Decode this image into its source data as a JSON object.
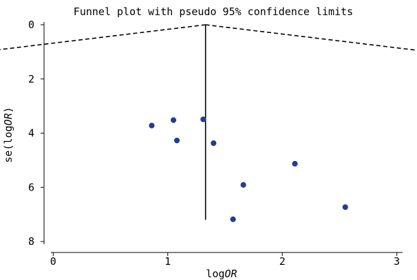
{
  "chart_data": {
    "type": "scatter",
    "title": "Funnel plot with pseudo 95% confidence limits",
    "xlabel": "logOR",
    "xlabel_parts": {
      "prefix": "log",
      "italic": "OR"
    },
    "ylabel": "se(logOR)",
    "ylabel_parts": {
      "prefix": "se(log",
      "italic": "OR",
      "suffix": ")"
    },
    "xlim": [
      -0.08,
      3.05
    ],
    "ylim": [
      0,
      8.1
    ],
    "y_inverted": true,
    "x_ticks": [
      0,
      1,
      2,
      3
    ],
    "y_ticks": [
      0,
      2,
      4,
      6,
      8
    ],
    "pooled_estimate": 1.33,
    "ci_multiplier": 1.96,
    "funnel_se_max": 7.2,
    "points": [
      {
        "x": 0.86,
        "y": 3.72
      },
      {
        "x": 1.05,
        "y": 3.52
      },
      {
        "x": 1.08,
        "y": 4.27
      },
      {
        "x": 1.31,
        "y": 3.49
      },
      {
        "x": 1.4,
        "y": 4.37
      },
      {
        "x": 1.66,
        "y": 5.91
      },
      {
        "x": 1.57,
        "y": 7.18
      },
      {
        "x": 2.11,
        "y": 5.13
      },
      {
        "x": 2.55,
        "y": 6.73
      }
    ],
    "grid": false,
    "colors": {
      "points": "#1f3f8f",
      "lines": "#000000"
    }
  }
}
